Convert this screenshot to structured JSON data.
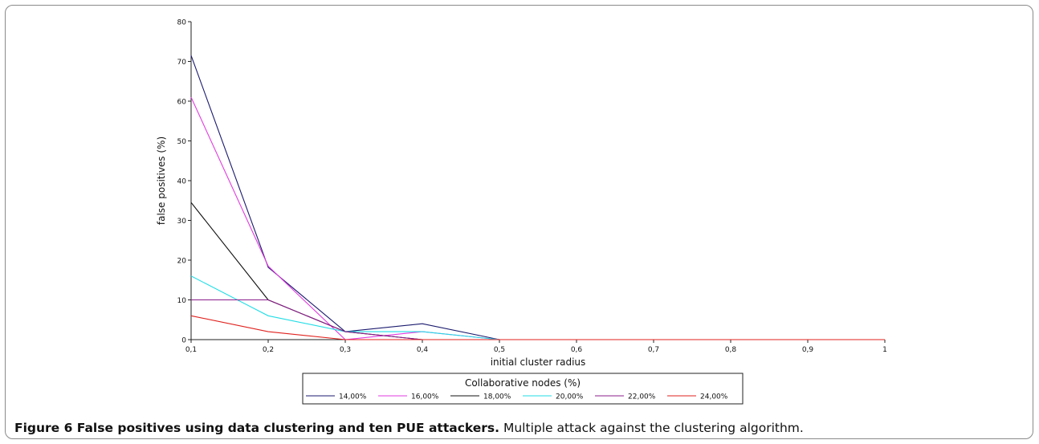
{
  "caption": {
    "label": "Figure 6 False positives using data clustering and ten PUE attackers.",
    "text": "Multiple attack against the clustering algorithm."
  },
  "chart_data": {
    "type": "line",
    "xlabel": "initial cluster radius",
    "ylabel": "false positives (%)",
    "x": [
      0.1,
      0.2,
      0.3,
      0.4,
      0.5,
      0.6,
      0.7,
      0.8,
      0.9,
      1.0
    ],
    "x_tick_labels": [
      "0,1",
      "0,2",
      "0,3",
      "0,4",
      "0,5",
      "0,6",
      "0,7",
      "0,8",
      "0,9",
      "1"
    ],
    "y_ticks": [
      0,
      10,
      20,
      30,
      40,
      50,
      60,
      70,
      80
    ],
    "y_tick_labels": [
      "0",
      "10",
      "20",
      "30",
      "40",
      "50",
      "60",
      "70",
      "80"
    ],
    "xlim": [
      0.1,
      1.0
    ],
    "ylim": [
      0,
      80
    ],
    "grid": false,
    "legend_title": "Collaborative nodes (%)",
    "legend_position": "bottom-center",
    "series": [
      {
        "name": "14,00%",
        "color": "#1a1a6e",
        "values": [
          71.5,
          18.2,
          2,
          4,
          0,
          0,
          0,
          0,
          0,
          0
        ]
      },
      {
        "name": "16,00%",
        "color": "#e23be0",
        "values": [
          61,
          18.5,
          0,
          2,
          0,
          0,
          0,
          0,
          0,
          0
        ]
      },
      {
        "name": "18,00%",
        "color": "#111111",
        "values": [
          34.5,
          10,
          2,
          0,
          0,
          0,
          0,
          0,
          0,
          0
        ]
      },
      {
        "name": "20,00%",
        "color": "#22dde6",
        "values": [
          16,
          6,
          2,
          2,
          0,
          0,
          0,
          0,
          0,
          0
        ]
      },
      {
        "name": "22,00%",
        "color": "#8b1e8b",
        "values": [
          10,
          10,
          2,
          0,
          0,
          0,
          0,
          0,
          0,
          0
        ]
      },
      {
        "name": "24,00%",
        "color": "#e0221e",
        "values": [
          6,
          2,
          0,
          0,
          0,
          0,
          0,
          0,
          0,
          0
        ]
      }
    ]
  }
}
